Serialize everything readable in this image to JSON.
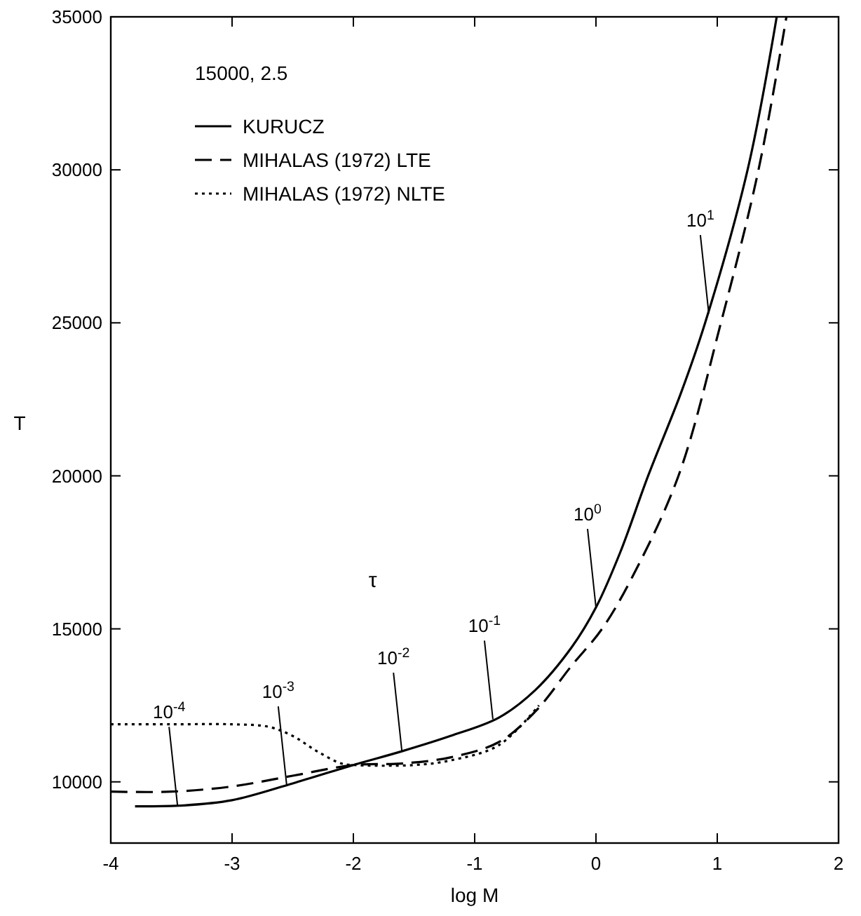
{
  "chart_data": {
    "type": "line",
    "xlabel": "log M",
    "ylabel": "T",
    "legend_title": "15000, 2.5",
    "legend": "top left",
    "grid": false,
    "marker": "none",
    "xlim": [
      -4,
      2
    ],
    "xticks": [
      -4,
      -3,
      -2,
      -1,
      0,
      1,
      2
    ],
    "ylim": [
      8000,
      35000
    ],
    "yticks": [
      10000,
      15000,
      20000,
      25000,
      30000,
      35000
    ],
    "series": [
      {
        "name": "KURUCZ",
        "color": "#000000",
        "line_style": "solid",
        "x": [
          -3.8,
          -3.4,
          -3,
          -2.5,
          -2,
          -1.6,
          -1.2,
          -0.8,
          -0.5,
          -0.2,
          0,
          0.2,
          0.43,
          0.7,
          0.9,
          1.25,
          1.49
        ],
        "values": [
          9200,
          9230,
          9400,
          9950,
          10550,
          11000,
          11500,
          12100,
          13000,
          14400,
          15700,
          17500,
          20000,
          22700,
          25000,
          30000,
          35000
        ]
      },
      {
        "name": "MIHALAS (1972) LTE",
        "color": "#000000",
        "line_style": "dashed",
        "x": [
          -4,
          -3.5,
          -3,
          -2.5,
          -2,
          -1.6,
          -1.2,
          -0.8,
          -0.5,
          -0.2,
          0.05,
          0.3,
          0.68,
          1.03,
          1.34,
          1.57
        ],
        "values": [
          9680,
          9680,
          9850,
          10200,
          10550,
          10600,
          10800,
          11300,
          12300,
          13800,
          15000,
          16700,
          20000,
          25000,
          30000,
          35000
        ]
      },
      {
        "name": "MIHALAS (1972) NLTE",
        "color": "#000000",
        "line_style": "dotted",
        "x": [
          -4,
          -3.5,
          -3,
          -2.7,
          -2.5,
          -2.3,
          -2.1,
          -2,
          -1.5,
          -1.2,
          -0.8,
          -0.47
        ],
        "values": [
          11880,
          11880,
          11880,
          11800,
          11500,
          11000,
          10600,
          10550,
          10550,
          10700,
          11200,
          12500
        ]
      }
    ],
    "annotations": [
      "τ",
      {
        "text": "10$^{-4}$",
        "x": -3.45,
        "y": 9230
      },
      {
        "text": "10$^{-3}$",
        "x": -2.55,
        "y": 9900
      },
      {
        "text": "10$^{-2}$",
        "x": -1.6,
        "y": 11000
      },
      {
        "text": "10$^{-1}$",
        "x": -0.85,
        "y": 12050
      },
      {
        "text": "10$^{0}$",
        "x": 0,
        "y": 15700
      },
      {
        "text": "10$^{1}$",
        "x": 0.93,
        "y": 25300
      }
    ]
  }
}
